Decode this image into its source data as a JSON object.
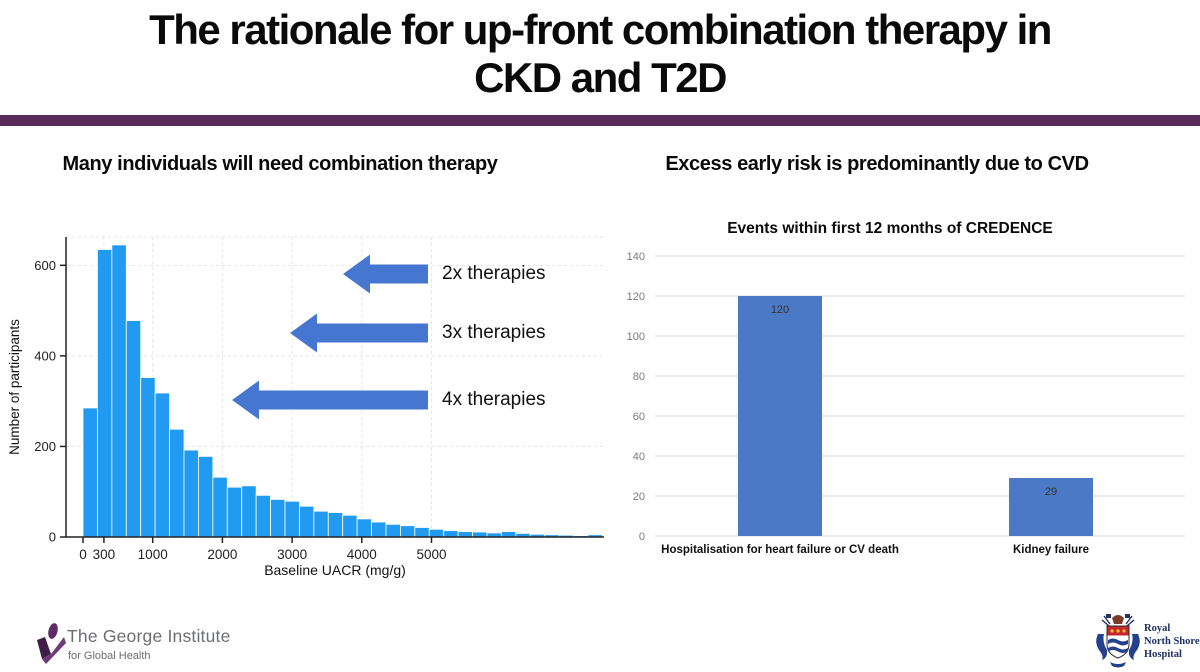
{
  "slide": {
    "title_line1": "The rationale for up-front combination therapy in",
    "title_line2": "CKD and T2D"
  },
  "left_panel": {
    "heading": "Many individuals will need combination therapy",
    "arrow_labels": [
      "2x therapies",
      "3x therapies",
      "4x therapies"
    ]
  },
  "right_panel": {
    "heading": "Excess early risk is predominantly due to CVD"
  },
  "chart_data": [
    {
      "type": "bar",
      "subtype": "histogram",
      "title": "",
      "xlabel": "Baseline UACR (mg/g)",
      "ylabel": "Number of participants",
      "x_ticks": [
        0,
        300,
        1000,
        2000,
        3000,
        4000,
        5000
      ],
      "y_ticks": [
        0,
        200,
        400,
        600
      ],
      "xlim": [
        0,
        7450
      ],
      "ylim": [
        0,
        660
      ],
      "bin_width": 207,
      "grid": "dashed horizontal and vertical",
      "bar_color": "#219af2",
      "values": [
        285,
        635,
        645,
        478,
        352,
        318,
        238,
        192,
        178,
        132,
        110,
        113,
        92,
        83,
        79,
        68,
        57,
        54,
        48,
        40,
        33,
        28,
        25,
        21,
        17,
        14,
        12,
        11,
        9,
        12,
        8,
        6,
        5,
        4,
        3,
        5
      ]
    },
    {
      "type": "bar",
      "title": "Events within first 12 months of CREDENCE",
      "categories": [
        "Hospitalisation for heart failure or CV death",
        "Kidney failure"
      ],
      "values": [
        120,
        29
      ],
      "value_labels": [
        "120",
        "29"
      ],
      "y_ticks": [
        0,
        20,
        40,
        60,
        80,
        100,
        120,
        140
      ],
      "ylim": [
        0,
        140
      ],
      "grid": "horizontal solid",
      "legend": "none",
      "bar_color": "#4b79c6"
    }
  ],
  "footer": {
    "george_institute": {
      "name": "The George Institute",
      "tagline": "for Global Health"
    },
    "rnsh": {
      "line1": "Royal",
      "line2": "North Shore",
      "line3": "Hospital"
    }
  },
  "colors": {
    "accent_rule": "#592a57",
    "histogram_bar": "#219af2",
    "arrow_blue": "#4577d1",
    "bar_blue": "#4b79c6",
    "grid_dashed": "#e4e4e4",
    "grid_solid": "#d9d9d9",
    "axis_black": "#222222",
    "tick_gray": "#7a7a7a"
  }
}
